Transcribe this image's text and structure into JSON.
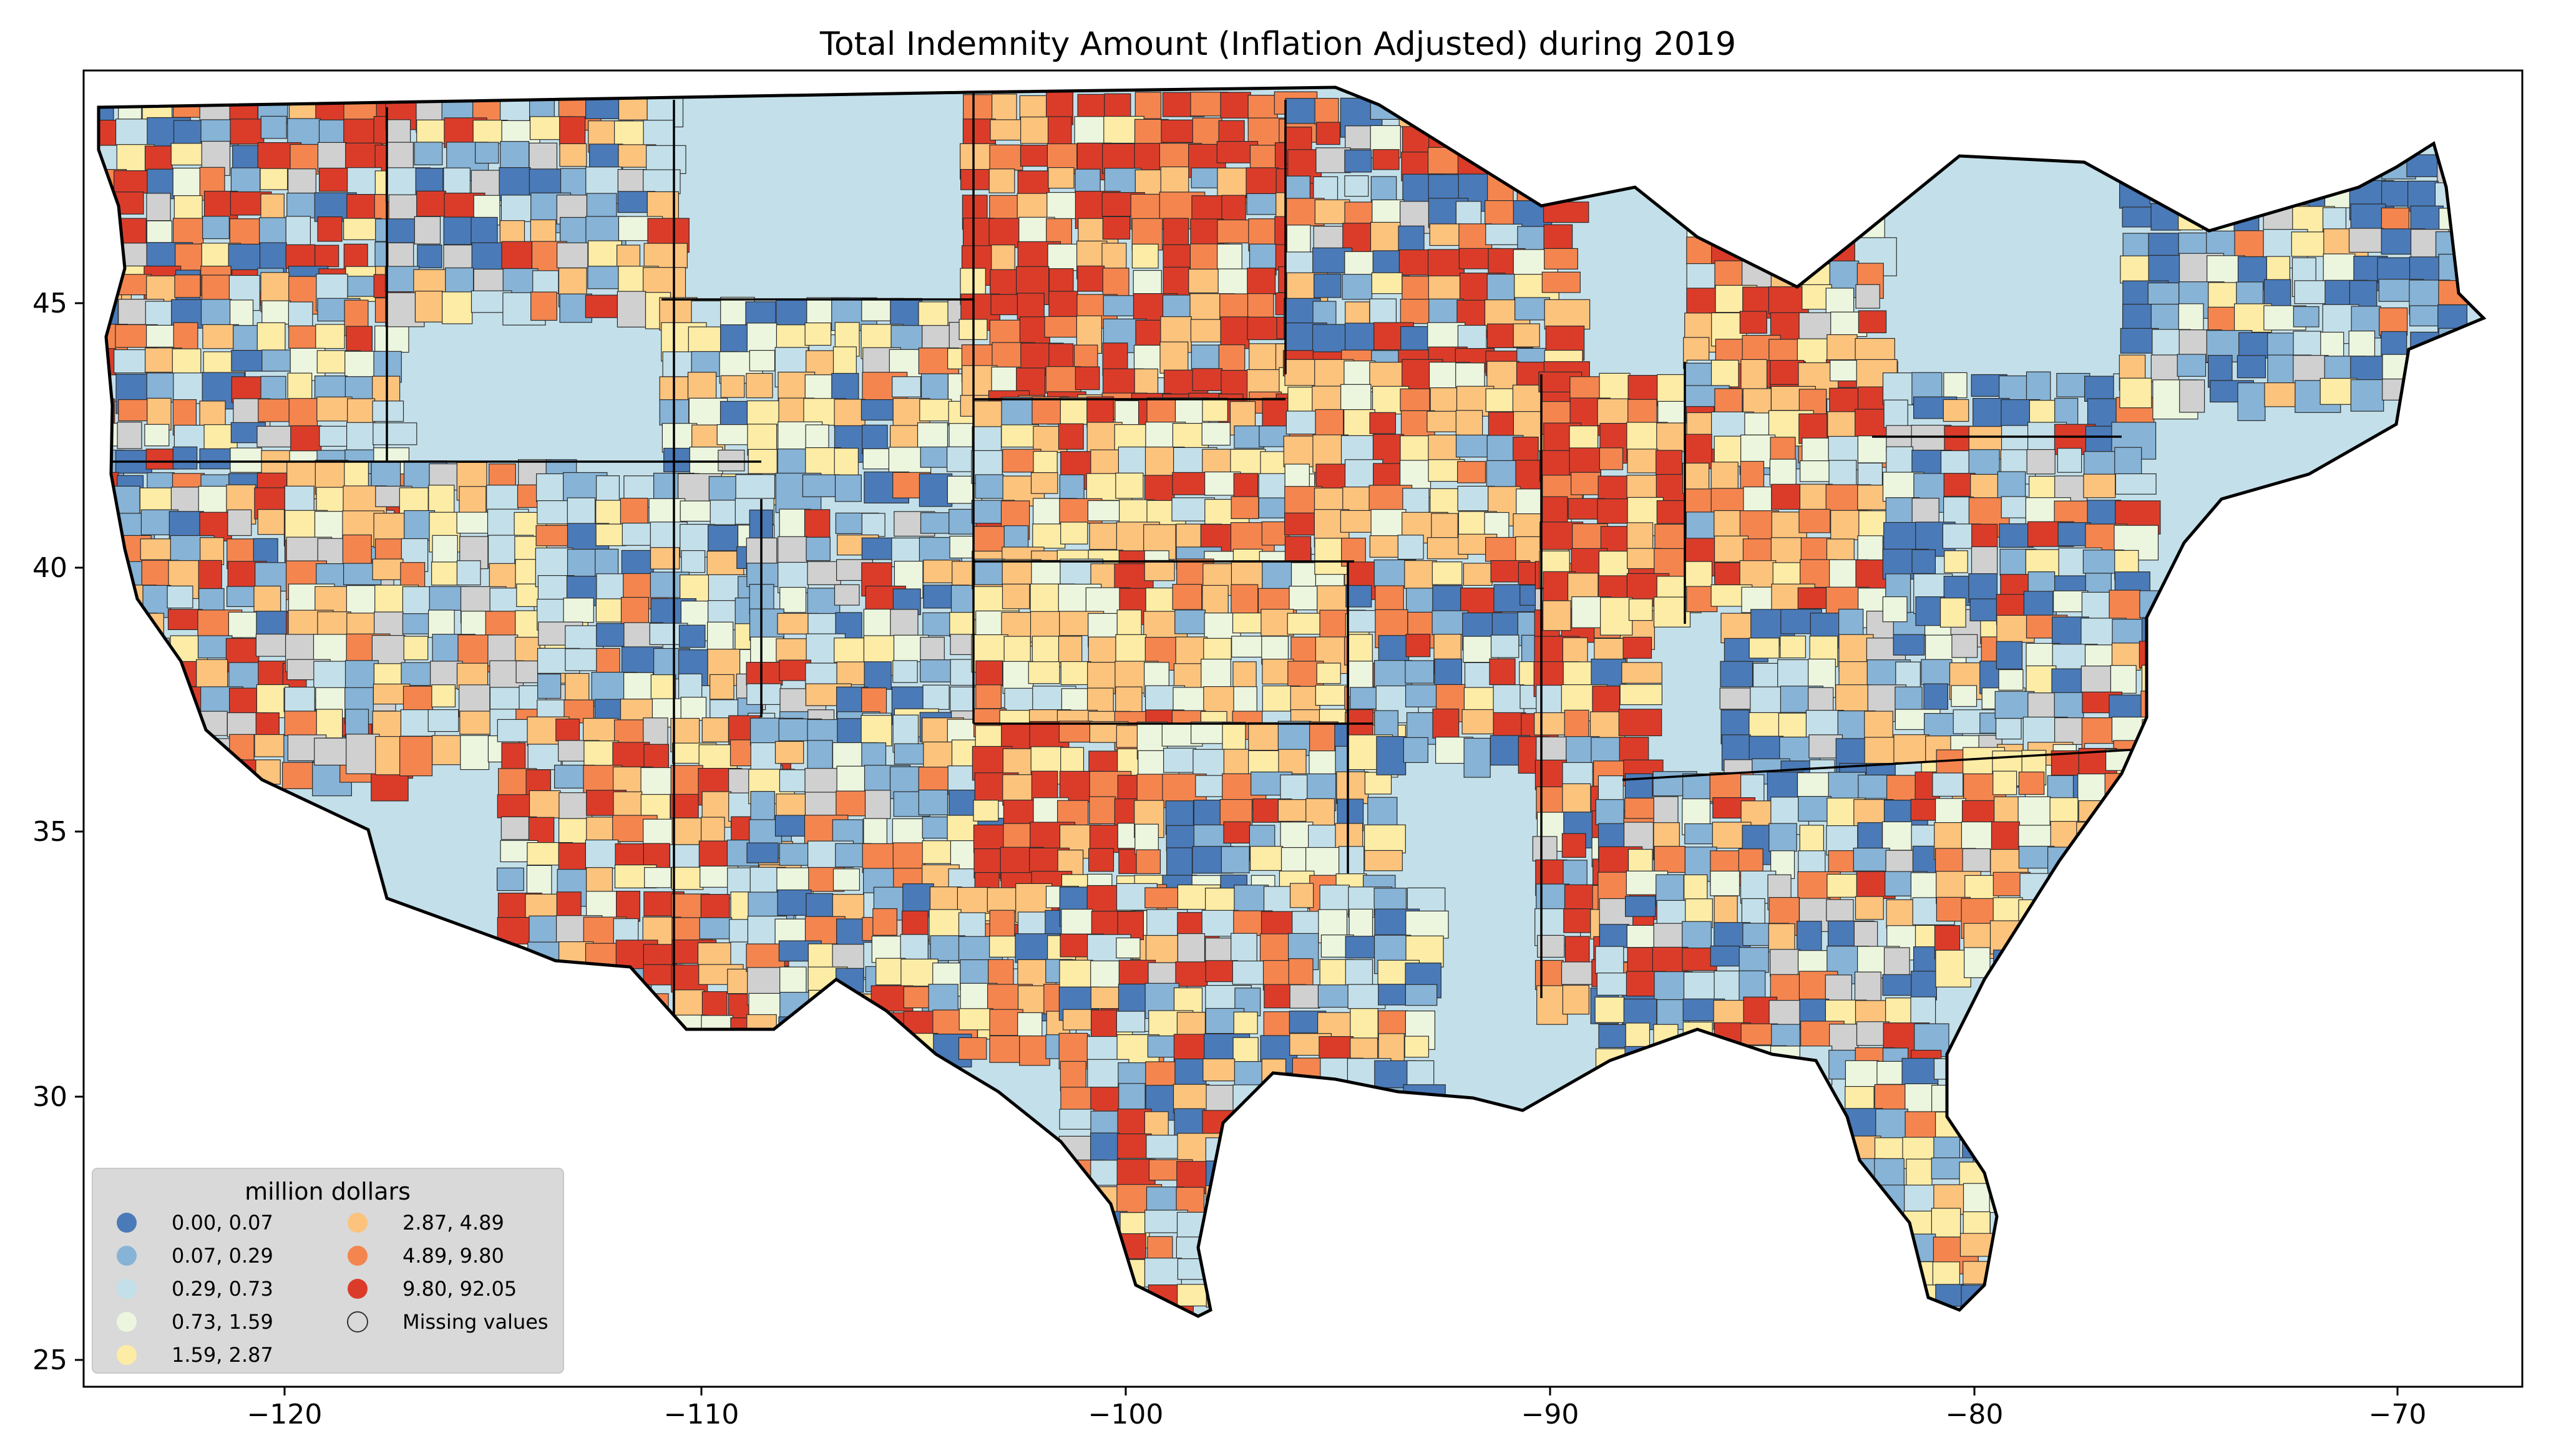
{
  "title": "Total Indemnity Amount  (Inflation Adjusted) during 2019",
  "x_ticks": [
    "−120",
    "−110",
    "−100",
    "−90",
    "−80",
    "−70"
  ],
  "y_ticks": [
    "45",
    "40",
    "35",
    "30",
    "25"
  ],
  "legend": {
    "title": "million dollars",
    "items": [
      {
        "label": "0.00,  0.07",
        "color": "#4a7ab8"
      },
      {
        "label": "0.07,  0.29",
        "color": "#86b3d6"
      },
      {
        "label": "0.29,  0.73",
        "color": "#c3e0ea"
      },
      {
        "label": "0.73,  1.59",
        "color": "#ecf6de"
      },
      {
        "label": "1.59,  2.87",
        "color": "#fdeca5"
      },
      {
        "label": "2.87,  4.89",
        "color": "#fcc37c"
      },
      {
        "label": "4.89,  9.80",
        "color": "#f4854f"
      },
      {
        "label": "9.80, 92.05",
        "color": "#db3c2a"
      },
      {
        "label": "Missing values",
        "color": "#d0d0d0"
      }
    ]
  },
  "map_data": {
    "type": "choropleth",
    "region": "Contiguous United States, county level",
    "x_range": [
      -125,
      -66.5
    ],
    "y_range": [
      24.5,
      49.5
    ],
    "classes": 8
  }
}
